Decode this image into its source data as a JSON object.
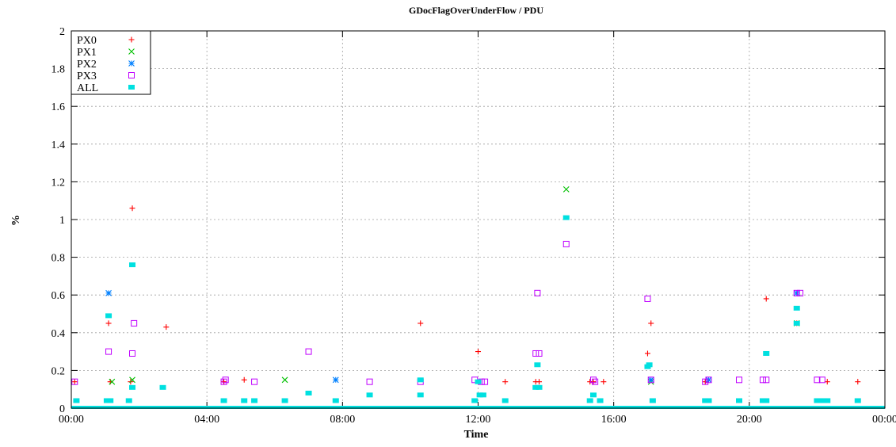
{
  "chart_data": {
    "type": "scatter",
    "title": "GDocFlagOverUnderFlow / PDU",
    "xlabel": "Time",
    "ylabel": "%",
    "x_unit": "hours",
    "xlim": [
      0,
      24
    ],
    "ylim": [
      0,
      2
    ],
    "x_ticks": [
      0,
      4,
      8,
      12,
      16,
      20,
      24
    ],
    "x_tick_labels": [
      "00:00",
      "04:00",
      "08:00",
      "12:00",
      "16:00",
      "20:00",
      "00:00"
    ],
    "y_ticks": [
      0,
      0.2,
      0.4,
      0.6,
      0.8,
      1,
      1.2,
      1.4,
      1.6,
      1.8,
      2
    ],
    "y_tick_labels": [
      "0",
      "0.2",
      "0.4",
      "0.6",
      "0.8",
      "1",
      "1.2",
      "1.4",
      "1.6",
      "1.8",
      "2"
    ],
    "grid": true,
    "legend_position": "top-left",
    "series": [
      {
        "name": "PX0",
        "marker": "plus",
        "color": "#ff0000",
        "points": [
          [
            0.1,
            0.14
          ],
          [
            1.1,
            0.45
          ],
          [
            1.15,
            0.14
          ],
          [
            1.8,
            1.06
          ],
          [
            1.75,
            0.14
          ],
          [
            2.8,
            0.43
          ],
          [
            4.5,
            0.14
          ],
          [
            5.1,
            0.15
          ],
          [
            10.3,
            0.45
          ],
          [
            12.0,
            0.3
          ],
          [
            12.8,
            0.14
          ],
          [
            13.7,
            0.14
          ],
          [
            13.8,
            0.14
          ],
          [
            15.3,
            0.14
          ],
          [
            15.4,
            0.14
          ],
          [
            15.7,
            0.14
          ],
          [
            17.1,
            0.45
          ],
          [
            17.0,
            0.29
          ],
          [
            18.7,
            0.14
          ],
          [
            20.5,
            0.58
          ],
          [
            21.4,
            0.45
          ],
          [
            22.3,
            0.14
          ],
          [
            23.2,
            0.14
          ]
        ]
      },
      {
        "name": "PX1",
        "marker": "cross",
        "color": "#00c000",
        "points": [
          [
            1.2,
            0.14
          ],
          [
            1.8,
            0.15
          ],
          [
            6.3,
            0.15
          ],
          [
            14.6,
            1.16
          ],
          [
            17.1,
            0.14
          ],
          [
            21.4,
            0.45
          ]
        ]
      },
      {
        "name": "PX2",
        "marker": "star",
        "color": "#0080ff",
        "points": [
          [
            1.1,
            0.61
          ],
          [
            7.8,
            0.15
          ],
          [
            21.4,
            0.61
          ],
          [
            17.1,
            0.15
          ],
          [
            18.8,
            0.15
          ]
        ]
      },
      {
        "name": "PX3",
        "marker": "box",
        "color": "#c000ff",
        "points": [
          [
            0.1,
            0.14
          ],
          [
            1.1,
            0.3
          ],
          [
            1.8,
            0.29
          ],
          [
            1.85,
            0.45
          ],
          [
            4.5,
            0.14
          ],
          [
            4.55,
            0.15
          ],
          [
            5.4,
            0.14
          ],
          [
            7.0,
            0.3
          ],
          [
            8.8,
            0.14
          ],
          [
            10.3,
            0.14
          ],
          [
            11.9,
            0.15
          ],
          [
            12.1,
            0.14
          ],
          [
            12.2,
            0.14
          ],
          [
            13.7,
            0.29
          ],
          [
            13.8,
            0.29
          ],
          [
            13.75,
            0.61
          ],
          [
            14.6,
            0.87
          ],
          [
            15.4,
            0.15
          ],
          [
            15.45,
            0.14
          ],
          [
            17.0,
            0.58
          ],
          [
            17.1,
            0.15
          ],
          [
            18.7,
            0.14
          ],
          [
            18.8,
            0.15
          ],
          [
            19.7,
            0.15
          ],
          [
            20.4,
            0.15
          ],
          [
            20.5,
            0.15
          ],
          [
            21.4,
            0.61
          ],
          [
            21.5,
            0.61
          ],
          [
            22.0,
            0.15
          ],
          [
            22.15,
            0.15
          ]
        ]
      },
      {
        "name": "ALL",
        "marker": "filled-box",
        "color": "#00e0e0",
        "points": [
          [
            0.15,
            0.04
          ],
          [
            1.05,
            0.04
          ],
          [
            1.15,
            0.04
          ],
          [
            1.1,
            0.49
          ],
          [
            1.7,
            0.04
          ],
          [
            1.8,
            0.11
          ],
          [
            1.8,
            0.76
          ],
          [
            2.7,
            0.11
          ],
          [
            4.5,
            0.04
          ],
          [
            5.1,
            0.04
          ],
          [
            5.4,
            0.04
          ],
          [
            6.3,
            0.04
          ],
          [
            7.0,
            0.08
          ],
          [
            7.8,
            0.04
          ],
          [
            8.8,
            0.07
          ],
          [
            10.3,
            0.07
          ],
          [
            10.3,
            0.15
          ],
          [
            11.9,
            0.04
          ],
          [
            12.0,
            0.14
          ],
          [
            12.05,
            0.07
          ],
          [
            12.15,
            0.07
          ],
          [
            12.8,
            0.04
          ],
          [
            13.7,
            0.11
          ],
          [
            13.8,
            0.11
          ],
          [
            13.75,
            0.23
          ],
          [
            14.6,
            1.01
          ],
          [
            15.3,
            0.04
          ],
          [
            15.4,
            0.07
          ],
          [
            15.6,
            0.04
          ],
          [
            17.0,
            0.22
          ],
          [
            17.05,
            0.23
          ],
          [
            17.15,
            0.04
          ],
          [
            18.7,
            0.04
          ],
          [
            18.8,
            0.04
          ],
          [
            19.7,
            0.04
          ],
          [
            20.4,
            0.04
          ],
          [
            20.5,
            0.04
          ],
          [
            20.5,
            0.29
          ],
          [
            21.4,
            0.53
          ],
          [
            21.4,
            0.45
          ],
          [
            22.0,
            0.04
          ],
          [
            22.1,
            0.04
          ],
          [
            22.2,
            0.04
          ],
          [
            22.3,
            0.04
          ],
          [
            23.2,
            0.04
          ]
        ]
      }
    ]
  }
}
